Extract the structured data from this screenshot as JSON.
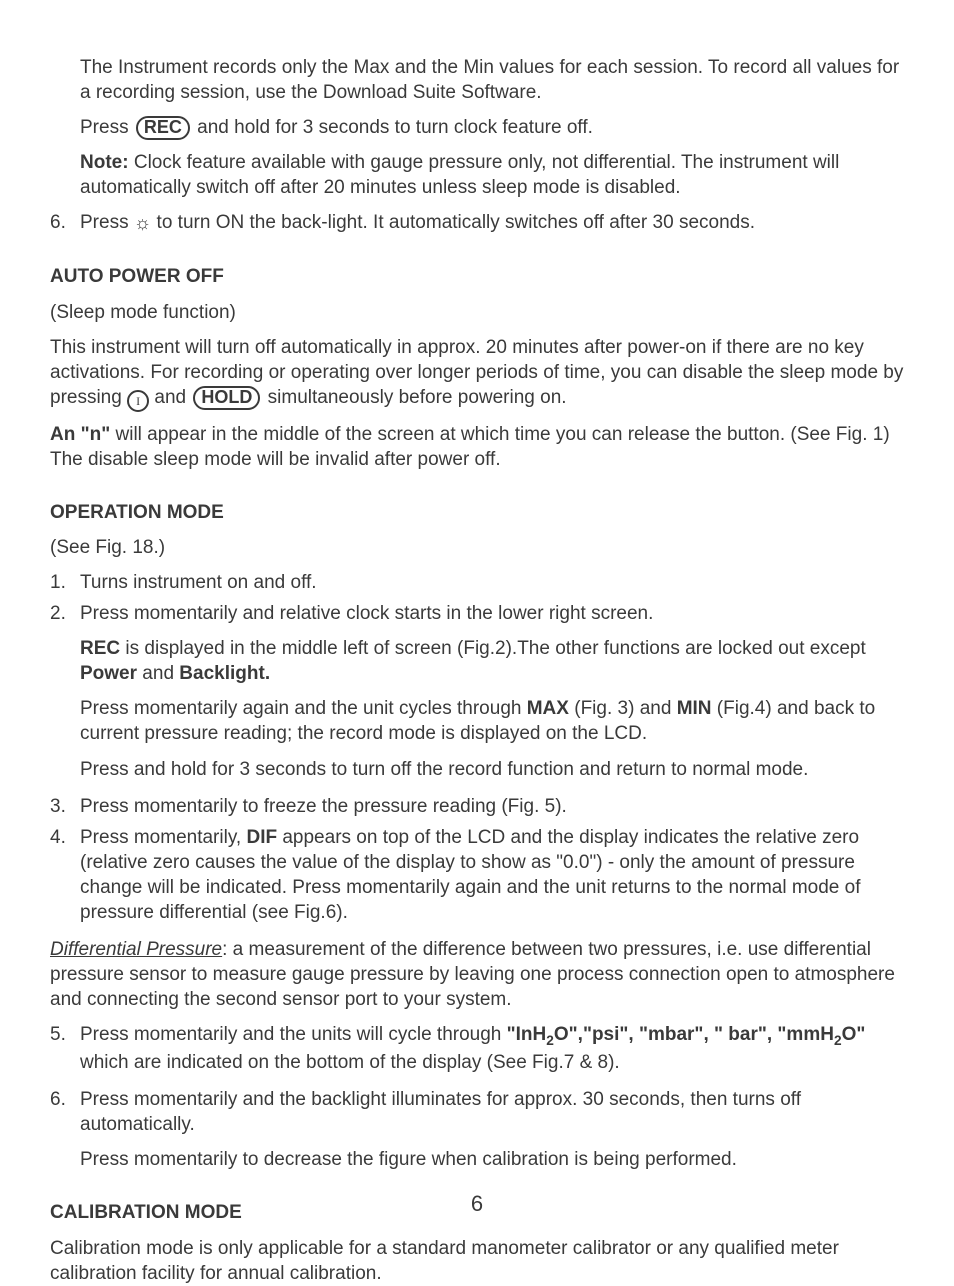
{
  "intro": {
    "p1": "The Instrument records only the Max and the Min values for each session. To record all values for a recording session, use the Download Suite Software.",
    "p2a": "Press ",
    "p2_btn": "REC",
    "p2b": " and hold for 3 seconds to turn clock feature off.",
    "note_label": "Note:",
    "note_text": " Clock feature available with gauge pressure only, not differential. The instrument will automatically switch off after 20 minutes unless sleep mode is disabled."
  },
  "item6_top": {
    "num": "6.",
    "a": "Press ",
    "b": " to turn ON the back-light. It automatically switches off after 30 seconds."
  },
  "auto_power": {
    "head": "AUTO POWER OFF",
    "sub": "(Sleep mode function)",
    "p1a": "This instrument will turn off automatically in approx. 20 minutes after power-on if there are no key activations. For recording or operating over longer periods of time, you can disable the sleep mode by pressing ",
    "p1_and": " and ",
    "p1_hold": "HOLD",
    "p1b": " simultaneously before powering on.",
    "p2_bold": "An \"n\"",
    "p2": " will appear in the middle of the screen at which time you can release the button. (See Fig. 1) The disable sleep mode will be invalid after power off."
  },
  "operation": {
    "head": "OPERATION MODE",
    "sub": "(See Fig. 18.)",
    "i1": {
      "num": "1.",
      "text": "Turns instrument on and off."
    },
    "i2": {
      "num": "2.",
      "p1": "Press momentarily and relative clock starts in the lower right screen.",
      "p2_rec": "REC",
      "p2a": " is displayed in the middle left of screen (Fig.2).The other functions are locked out except ",
      "p2_power": "Power",
      "p2_and": " and ",
      "p2_bl": "Backlight.",
      "p3a": "Press momentarily again and the unit cycles through ",
      "p3_max": "MAX",
      "p3b": " (Fig. 3) and ",
      "p3_min": "MIN",
      "p3c": " (Fig.4) and back to current pressure reading; the record mode is displayed on the LCD.",
      "p4": "Press and hold for 3 seconds to turn off the record function and return to normal mode."
    },
    "i3": {
      "num": "3.",
      "text": "Press momentarily to freeze the pressure reading (Fig. 5)."
    },
    "i4": {
      "num": "4.",
      "a": "Press momentarily, ",
      "dif": "DIF",
      "b": " appears on top of the LCD and the display indicates the relative zero (relative zero causes the value of the display to show as \"0.0\") - only the amount of pressure change will be indicated. Press momentarily again and the unit returns to the normal mode of pressure differential (see Fig.6)."
    },
    "diffp_label": "Differential Pressure",
    "diffp_text": ": a measurement of the difference between two pressures, i.e. use differential pressure sensor to measure gauge pressure by leaving one process connection open to atmosphere and connecting the second sensor port to your system.",
    "i5": {
      "num": "5.",
      "a": "Press momentarily and the units will cycle through ",
      "u1a": "\"InH",
      "u1b": "O\",\"psi\", \"mbar\", \" bar\", \"mmH",
      "u1c": "O\"",
      "b": " which are indicated on the bottom of the display (See Fig.7 & 8)."
    },
    "i6": {
      "num": "6.",
      "p1": "Press momentarily and the backlight illuminates for approx. 30 seconds, then turns off automatically.",
      "p2": "Press momentarily to decrease the figure when calibration is being performed."
    }
  },
  "calibration": {
    "head": "CALIBRATION MODE",
    "p1": "Calibration mode is only applicable for a standard manometer calibrator or any qualified meter calibration facility for annual calibration."
  },
  "page_number": "6",
  "icons": {
    "power_glyph": "I",
    "sun_glyph": "☼",
    "sub2": "2"
  }
}
